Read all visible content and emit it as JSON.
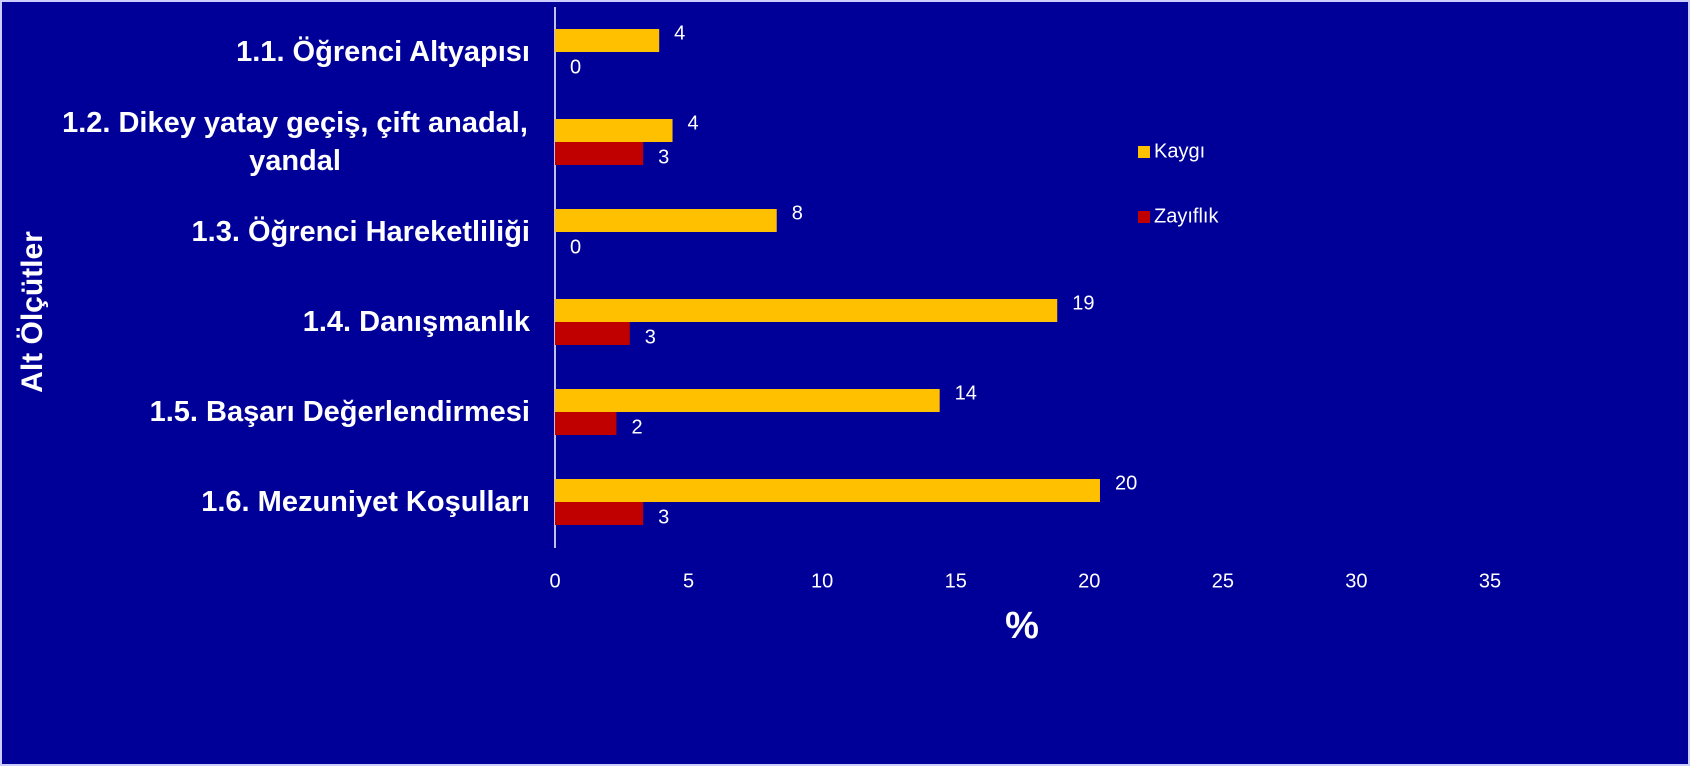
{
  "chart_data": {
    "type": "bar",
    "orientation": "horizontal",
    "y_axis_label": "Alt Ölçütler",
    "x_axis_label": "%",
    "categories": [
      "1.1. Öğrenci Altyapısı",
      "1.2. Dikey yatay geçiş, çift anadal, yandal",
      "1.3. Öğrenci Hareketliliği",
      "1.4. Danışmanlık",
      "1.5. Başarı Değerlendirmesi",
      "1.6. Mezuniyet Koşulları"
    ],
    "series": [
      {
        "name": "Kaygı",
        "color": "#ffc000",
        "values": [
          3.9,
          4.4,
          8.3,
          18.8,
          14.4,
          20.4
        ],
        "value_labels": [
          "4",
          "4",
          "8",
          "19",
          "14",
          "20"
        ]
      },
      {
        "name": "Zayıflık",
        "color": "#c00000",
        "values": [
          0,
          3.3,
          0,
          2.8,
          2.3,
          3.3
        ],
        "value_labels": [
          "0",
          "3",
          "0",
          "3",
          "2",
          "3"
        ]
      }
    ],
    "xlim": [
      0,
      35
    ],
    "xticks": [
      0,
      5,
      10,
      15,
      20,
      25,
      30,
      35
    ],
    "legend": "right"
  }
}
